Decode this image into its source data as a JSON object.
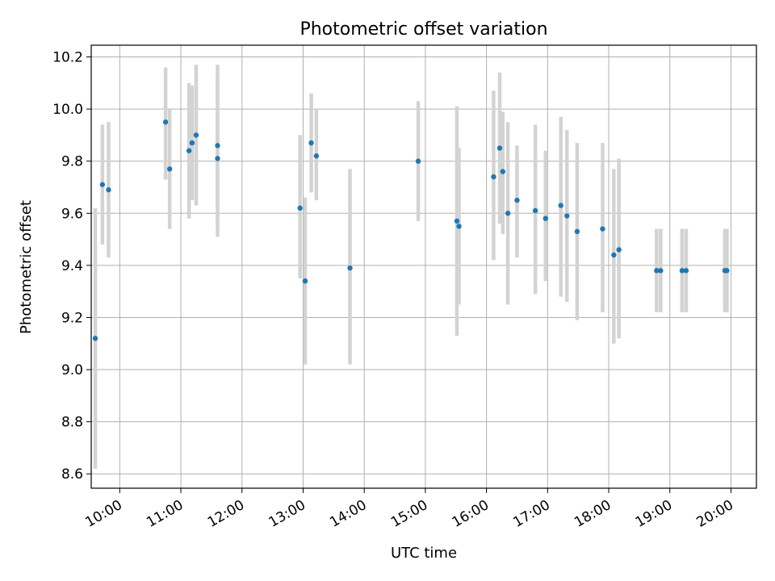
{
  "chart_data": {
    "type": "scatter",
    "title": "Photometric offset variation",
    "xlabel": "UTC time",
    "ylabel": "Photometric offset",
    "x_ticks": [
      "10:00",
      "11:00",
      "12:00",
      "13:00",
      "14:00",
      "15:00",
      "16:00",
      "17:00",
      "18:00",
      "19:00",
      "20:00"
    ],
    "y_ticks": [
      "8.6",
      "8.8",
      "9.0",
      "9.2",
      "9.4",
      "9.6",
      "9.8",
      "10.0",
      "10.2"
    ],
    "xlim": [
      "09:32",
      "20:25"
    ],
    "ylim": [
      8.545,
      10.245
    ],
    "grid": true,
    "error_bar_color": "#d3d3d3",
    "point_color": "#1f77b4",
    "points": [
      {
        "x": "09:36",
        "y": 9.12,
        "y_low": 8.62,
        "y_high": 9.62
      },
      {
        "x": "09:43",
        "y": 9.71,
        "y_low": 9.48,
        "y_high": 9.94
      },
      {
        "x": "09:49",
        "y": 9.69,
        "y_low": 9.43,
        "y_high": 9.95
      },
      {
        "x": "10:45",
        "y": 9.95,
        "y_low": 9.73,
        "y_high": 10.16
      },
      {
        "x": "10:49",
        "y": 9.77,
        "y_low": 9.54,
        "y_high": 10.0
      },
      {
        "x": "11:08",
        "y": 9.84,
        "y_low": 9.58,
        "y_high": 10.1
      },
      {
        "x": "11:11",
        "y": 9.87,
        "y_low": 9.65,
        "y_high": 10.09
      },
      {
        "x": "11:15",
        "y": 9.9,
        "y_low": 9.63,
        "y_high": 10.17
      },
      {
        "x": "11:36",
        "y": 9.86,
        "y_low": 9.56,
        "y_high": 10.17
      },
      {
        "x": "11:36",
        "y": 9.81,
        "y_low": 9.51,
        "y_high": 10.12
      },
      {
        "x": "12:57",
        "y": 9.62,
        "y_low": 9.35,
        "y_high": 9.9
      },
      {
        "x": "13:02",
        "y": 9.34,
        "y_low": 9.02,
        "y_high": 9.66
      },
      {
        "x": "13:08",
        "y": 9.87,
        "y_low": 9.68,
        "y_high": 10.06
      },
      {
        "x": "13:13",
        "y": 9.82,
        "y_low": 9.65,
        "y_high": 10.0
      },
      {
        "x": "13:46",
        "y": 9.39,
        "y_low": 9.02,
        "y_high": 9.77
      },
      {
        "x": "14:53",
        "y": 9.8,
        "y_low": 9.57,
        "y_high": 10.03
      },
      {
        "x": "15:31",
        "y": 9.57,
        "y_low": 9.13,
        "y_high": 10.01
      },
      {
        "x": "15:33",
        "y": 9.55,
        "y_low": 9.25,
        "y_high": 9.85
      },
      {
        "x": "16:07",
        "y": 9.74,
        "y_low": 9.42,
        "y_high": 10.07
      },
      {
        "x": "16:13",
        "y": 9.85,
        "y_low": 9.56,
        "y_high": 10.14
      },
      {
        "x": "16:16",
        "y": 9.76,
        "y_low": 9.52,
        "y_high": 9.99
      },
      {
        "x": "16:21",
        "y": 9.6,
        "y_low": 9.25,
        "y_high": 9.95
      },
      {
        "x": "16:30",
        "y": 9.65,
        "y_low": 9.43,
        "y_high": 9.86
      },
      {
        "x": "16:48",
        "y": 9.61,
        "y_low": 9.29,
        "y_high": 9.94
      },
      {
        "x": "16:58",
        "y": 9.58,
        "y_low": 9.34,
        "y_high": 9.84
      },
      {
        "x": "17:13",
        "y": 9.63,
        "y_low": 9.28,
        "y_high": 9.97
      },
      {
        "x": "17:19",
        "y": 9.59,
        "y_low": 9.26,
        "y_high": 9.92
      },
      {
        "x": "17:29",
        "y": 9.53,
        "y_low": 9.19,
        "y_high": 9.87
      },
      {
        "x": "17:54",
        "y": 9.54,
        "y_low": 9.22,
        "y_high": 9.87
      },
      {
        "x": "18:05",
        "y": 9.44,
        "y_low": 9.1,
        "y_high": 9.77
      },
      {
        "x": "18:10",
        "y": 9.46,
        "y_low": 9.12,
        "y_high": 9.81
      },
      {
        "x": "18:47",
        "y": 9.38,
        "y_low": 9.22,
        "y_high": 9.54
      },
      {
        "x": "18:51",
        "y": 9.38,
        "y_low": 9.22,
        "y_high": 9.54
      },
      {
        "x": "19:12",
        "y": 9.38,
        "y_low": 9.22,
        "y_high": 9.54
      },
      {
        "x": "19:16",
        "y": 9.38,
        "y_low": 9.22,
        "y_high": 9.54
      },
      {
        "x": "19:54",
        "y": 9.38,
        "y_low": 9.22,
        "y_high": 9.54
      },
      {
        "x": "19:56",
        "y": 9.38,
        "y_low": 9.22,
        "y_high": 9.54
      }
    ]
  }
}
